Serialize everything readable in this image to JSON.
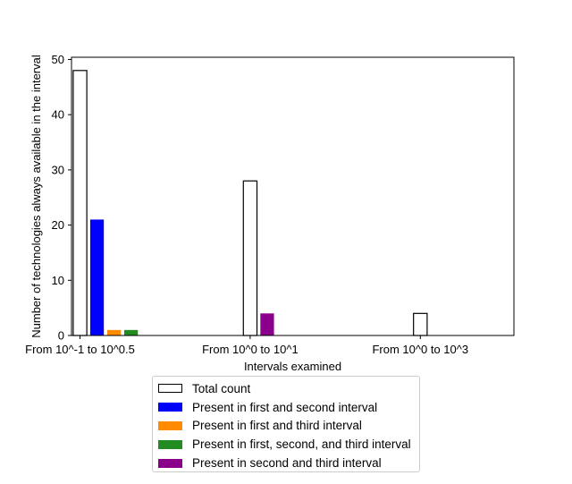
{
  "chart_data": {
    "type": "bar",
    "categories": [
      "From 10^-1 to 10^0.5",
      "From 10^0 to 10^1",
      "From 10^0 to 10^3"
    ],
    "series": [
      {
        "name": "Total count",
        "values": [
          48,
          28,
          4
        ],
        "color": "#ffffff",
        "edgecolor": "#000000"
      },
      {
        "name": "Present in first and second interval",
        "values": [
          21,
          null,
          null
        ],
        "color": "#0000ff"
      },
      {
        "name": "Present in first and third interval",
        "values": [
          1,
          null,
          null
        ],
        "color": "#ff8c00"
      },
      {
        "name": "Present in first, second, and third interval",
        "values": [
          1,
          null,
          null
        ],
        "color": "#228b22"
      },
      {
        "name": "Present in second and third interval",
        "values": [
          null,
          4,
          null
        ],
        "color": "#8b008b"
      }
    ],
    "xlabel": "Intervals examined",
    "ylabel": "Number of technologies always available in the interval",
    "ylim": [
      0,
      50.4
    ],
    "yticks": [
      "0",
      "10",
      "20",
      "30",
      "40",
      "50"
    ],
    "grid": false,
    "legend_position": "below plot, centered"
  }
}
